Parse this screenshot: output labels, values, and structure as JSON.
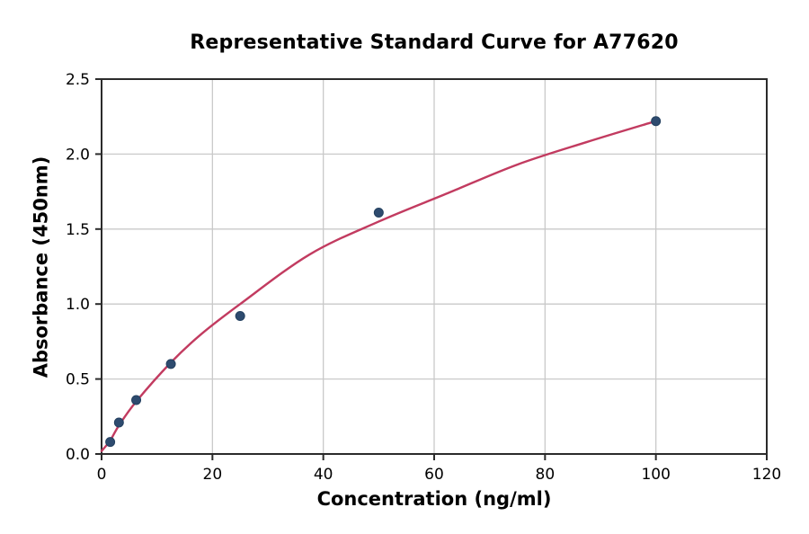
{
  "chart_data": {
    "type": "scatter",
    "title": "Representative Standard Curve for A77620",
    "xlabel": "Concentration (ng/ml)",
    "ylabel": "Absorbance (450nm)",
    "xlim": [
      0,
      120
    ],
    "ylim": [
      0,
      2.5
    ],
    "x_ticks": [
      0,
      20,
      40,
      60,
      80,
      100,
      120
    ],
    "x_tick_labels": [
      "0",
      "20",
      "40",
      "60",
      "80",
      "100",
      "120"
    ],
    "y_ticks": [
      0.0,
      0.5,
      1.0,
      1.5,
      2.0,
      2.5
    ],
    "y_tick_labels": [
      "0.0",
      "0.5",
      "1.0",
      "1.5",
      "2.0",
      "2.5"
    ],
    "grid": true,
    "legend": null,
    "series": [
      {
        "name": "standard-points",
        "type": "scatter",
        "x": [
          1.56,
          3.13,
          6.25,
          12.5,
          25,
          50,
          100
        ],
        "y": [
          0.08,
          0.21,
          0.36,
          0.6,
          0.92,
          1.61,
          2.22
        ],
        "color": "#2e4b6f",
        "edge_color": "#23405f",
        "marker_radius": 5
      },
      {
        "name": "fit-curve",
        "type": "line",
        "x": [
          0,
          1.56,
          3.13,
          6.25,
          12.5,
          18,
          25,
          37.5,
          50,
          62.5,
          75,
          87.5,
          100
        ],
        "y": [
          0.02,
          0.09,
          0.19,
          0.35,
          0.61,
          0.8,
          1.0,
          1.33,
          1.55,
          1.74,
          1.93,
          2.08,
          2.22
        ],
        "color": "#c23b60",
        "line_width": 2.4
      }
    ],
    "colors": {
      "grid": "#c9c9c9",
      "spine": "#2b2b2b",
      "background": "#ffffff",
      "text": "#000000"
    }
  }
}
